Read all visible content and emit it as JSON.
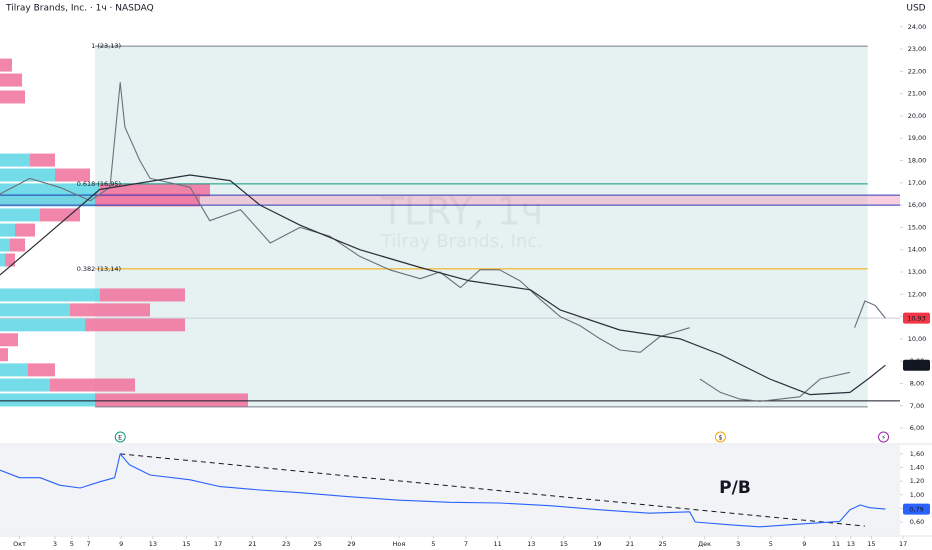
{
  "header": {
    "title": "Tilray Brands, Inc. · 1ч · NASDAQ",
    "currency": "USD",
    "watermark_symbol": "TLRY, 1ч",
    "watermark_name": "Tilray Brands, Inc."
  },
  "chart_data": [
    {
      "type": "line",
      "xlim": [
        0,
        100
      ],
      "ylim": [
        5.33,
        25.2
      ],
      "yticks": [
        {
          "value": 24,
          "label": "24,00"
        },
        {
          "value": 23,
          "label": "23,00"
        },
        {
          "value": 22,
          "label": "22,00"
        },
        {
          "value": 21,
          "label": "21,00"
        },
        {
          "value": 20,
          "label": "20,00"
        },
        {
          "value": 19,
          "label": "19,00"
        },
        {
          "value": 18,
          "label": "18,00"
        },
        {
          "value": 17,
          "label": "17,00"
        },
        {
          "value": 16,
          "label": "16,00"
        },
        {
          "value": 15,
          "label": "15,00"
        },
        {
          "value": 14,
          "label": "14,00"
        },
        {
          "value": 13,
          "label": "13,00"
        },
        {
          "value": 12,
          "label": "12,00"
        },
        {
          "value": 11,
          "label": "11,00"
        },
        {
          "value": 10,
          "label": "10,00"
        },
        {
          "value": 9,
          "label": "9,00"
        },
        {
          "value": 8,
          "label": "8,00"
        },
        {
          "value": 7,
          "label": "7,00"
        },
        {
          "value": 6,
          "label": "6,00"
        }
      ],
      "fib_span": [
        10.2,
        93.1
      ],
      "fib_fill": "#e6f1f1",
      "band": {
        "values": [
          16.0,
          16.45
        ],
        "color": "#f3a9c4"
      },
      "levels": [
        {
          "value": 23.13,
          "color": "#787b86",
          "fib": true,
          "label": "1 (23,13)"
        },
        {
          "value": 16.95,
          "color": "#089981",
          "fib": true,
          "label": "0.618 (16,95)"
        },
        {
          "value": 16.45,
          "color": "#2f3bb5"
        },
        {
          "value": 16.0,
          "color": "#2f3bb5"
        },
        {
          "value": 13.14,
          "color": "#f7a600",
          "fib": true,
          "label": "0.382 (13,14)"
        },
        {
          "value": 10.93,
          "color": "#c9ccd4"
        },
        {
          "value": 7.22,
          "color": "#131722"
        },
        {
          "value": 6.95,
          "color": "#787b86",
          "fib": true
        }
      ],
      "volume_profile": {
        "up_color": "#5cd6e4",
        "down_color": "#f0709b",
        "prices": [
          22.28,
          21.61,
          20.85,
          18.02,
          17.35,
          16.68,
          16.23,
          15.56,
          14.88,
          14.21,
          13.54,
          11.97,
          11.3,
          10.63,
          9.96,
          9.29,
          8.61,
          7.93,
          7.26
        ],
        "up": [
          0,
          0,
          0,
          30,
          55,
          100,
          95,
          40,
          15,
          10,
          5,
          100,
          70,
          85,
          0,
          0,
          28,
          50,
          95
        ],
        "down": [
          12,
          22,
          25,
          25,
          35,
          110,
          105,
          40,
          20,
          15,
          10,
          85,
          80,
          100,
          18,
          8,
          27,
          85,
          153
        ]
      },
      "series": [
        {
          "color": "#6b6f7a",
          "x": [
            0,
            3.2,
            6.4,
            9.7,
            11.8,
            12.9,
            13.4,
            15,
            16.1,
            20.4,
            22.5,
            25.8,
            29,
            32.2,
            35.4,
            38.6,
            41.8,
            45.1,
            47.2,
            49.4,
            51.5,
            53.6,
            55.8,
            57.9,
            60.1,
            62.2,
            64.4,
            66.5,
            68.7,
            70.8,
            74,
            74.6,
            75.1,
            77.3,
            79.4,
            81.5,
            83.7,
            85.8,
            88,
            91.2,
            91.4,
            91.7,
            92.8,
            93.9,
            95
          ],
          "values": [
            16.5,
            17.2,
            16.8,
            16.2,
            16.8,
            21.5,
            19.5,
            18,
            17.2,
            16.8,
            15.3,
            15.8,
            14.3,
            15.0,
            14.6,
            13.7,
            13.1,
            12.7,
            13.0,
            12.3,
            13.1,
            13.1,
            12.6,
            11.8,
            11.0,
            10.6,
            10.0,
            9.5,
            9.4,
            10.1,
            10.5,
            null,
            8.2,
            7.6,
            7.3,
            7.2,
            7.3,
            7.4,
            8.2,
            8.5,
            null,
            10.5,
            11.7,
            11.5,
            10.93
          ]
        },
        {
          "color": "#2a2e39",
          "x": [
            0,
            4.3,
            10.7,
            20.4,
            24.7,
            27.9,
            32.2,
            38.6,
            45.1,
            50.4,
            56.9,
            60.1,
            66.5,
            73,
            77.3,
            82.6,
            86.9,
            91.2,
            93.3,
            95
          ],
          "values": [
            12.87,
            14.4,
            16.7,
            17.35,
            17.1,
            16.0,
            15.1,
            14.0,
            13.2,
            12.6,
            12.2,
            11.3,
            10.4,
            10.0,
            9.3,
            8.2,
            7.5,
            7.6,
            8.25,
            8.82
          ]
        }
      ],
      "last_values": [
        {
          "value": 10.93,
          "label": "10,93",
          "color": "#f23645"
        },
        {
          "value": 8.82,
          "label": "8,82",
          "color": "#131722"
        }
      ],
      "events": [
        {
          "x": 12.9,
          "label": "E",
          "color": "#089981"
        },
        {
          "x": 77.3,
          "label": "$",
          "color": "#f7a600"
        },
        {
          "x": 94.8,
          "label": "⚡",
          "color": "#9c27b0"
        }
      ]
    },
    {
      "type": "line",
      "xlim": [
        0,
        100
      ],
      "ylim": [
        0.41,
        1.73
      ],
      "yticks": [
        {
          "value": 1.6,
          "label": "1,60"
        },
        {
          "value": 1.4,
          "label": "1,40"
        },
        {
          "value": 1.2,
          "label": "1,20"
        },
        {
          "value": 1.0,
          "label": "1,00"
        },
        {
          "value": 0.8,
          "label": "0,80"
        },
        {
          "value": 0.6,
          "label": "0,60"
        }
      ],
      "xticks": [
        {
          "value": 2.1,
          "label": "Окт"
        },
        {
          "value": 5.9,
          "label": "3"
        },
        {
          "value": 7.7,
          "label": "5"
        },
        {
          "value": 9.5,
          "label": "7"
        },
        {
          "value": 13,
          "label": "9"
        },
        {
          "value": 16.4,
          "label": "13"
        },
        {
          "value": 20,
          "label": "15"
        },
        {
          "value": 23.4,
          "label": "17"
        },
        {
          "value": 27.1,
          "label": "21"
        },
        {
          "value": 30.7,
          "label": "23"
        },
        {
          "value": 34.1,
          "label": "25"
        },
        {
          "value": 37.7,
          "label": "29"
        },
        {
          "value": 42.8,
          "label": "Ноя"
        },
        {
          "value": 46.5,
          "label": "5"
        },
        {
          "value": 50,
          "label": "7"
        },
        {
          "value": 53.4,
          "label": "11"
        },
        {
          "value": 57,
          "label": "13"
        },
        {
          "value": 60.5,
          "label": "15"
        },
        {
          "value": 64.1,
          "label": "19"
        },
        {
          "value": 67.6,
          "label": "21"
        },
        {
          "value": 71.1,
          "label": "25"
        },
        {
          "value": 75.6,
          "label": "Дек"
        },
        {
          "value": 79.2,
          "label": "3"
        },
        {
          "value": 82.7,
          "label": "5"
        },
        {
          "value": 86.3,
          "label": "9"
        },
        {
          "value": 89.7,
          "label": "11"
        },
        {
          "value": 91.3,
          "label": "13"
        },
        {
          "value": 93.5,
          "label": "15"
        },
        {
          "value": 96.9,
          "label": "17"
        }
      ],
      "series": [
        {
          "color": "#2962ff",
          "x": [
            0,
            2.1,
            4.3,
            6.4,
            8.6,
            10.7,
            12.3,
            12.9,
            13.9,
            16.1,
            20.4,
            23.6,
            27.9,
            32.2,
            37.6,
            42.9,
            48.3,
            53.6,
            59,
            64.4,
            69.7,
            74,
            74.6,
            78.3,
            81.5,
            85.8,
            90.1,
            91.2,
            92.3,
            93.3,
            95
          ],
          "values": [
            1.36,
            1.25,
            1.25,
            1.14,
            1.1,
            1.19,
            1.25,
            1.6,
            1.44,
            1.29,
            1.22,
            1.12,
            1.07,
            1.03,
            0.97,
            0.92,
            0.89,
            0.88,
            0.84,
            0.78,
            0.73,
            0.75,
            0.6,
            0.56,
            0.53,
            0.57,
            0.61,
            0.78,
            0.85,
            0.81,
            0.79
          ]
        }
      ],
      "trendline": {
        "x": [
          12.9,
          92.8
        ],
        "values": [
          1.6,
          0.54
        ],
        "color": "#131722"
      },
      "annotation": "P/B",
      "last_values": [
        {
          "value": 0.79,
          "label": "0,79",
          "color": "#2962ff"
        }
      ]
    }
  ]
}
